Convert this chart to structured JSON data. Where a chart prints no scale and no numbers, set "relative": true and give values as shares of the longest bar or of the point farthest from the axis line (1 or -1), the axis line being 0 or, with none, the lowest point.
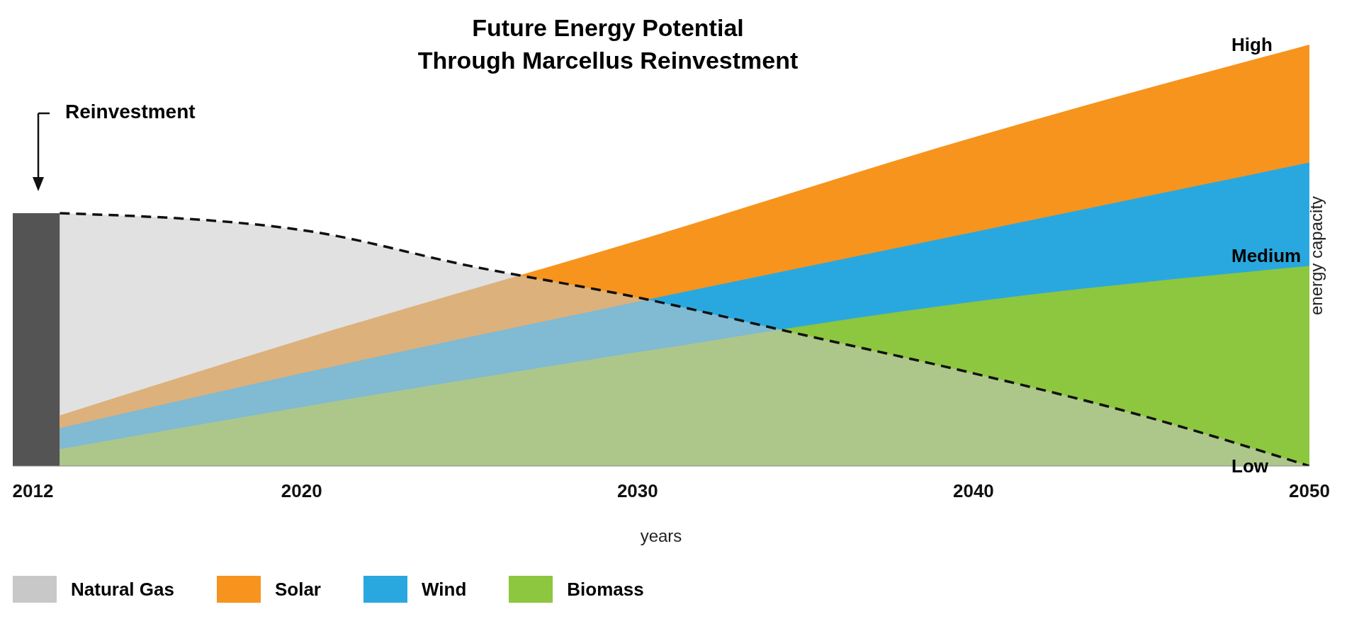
{
  "chart_data": {
    "type": "area",
    "title": "Future Energy Potential\nThrough Marcellus Reinvestment",
    "xlabel": "years",
    "ylabel": "energy capacity",
    "relative": true,
    "xlim": [
      2011.4,
      2050
    ],
    "xticks": [
      2012,
      2020,
      2030,
      2040,
      2050
    ],
    "annotations": [
      "Reinvestment",
      "High",
      "Medium",
      "Low"
    ],
    "legend": "bottom",
    "series": [
      {
        "type": "area",
        "color": "#545454",
        "x": [
          2011.4,
          2012.8
        ],
        "values": [
          0.6,
          0.6
        ]
      },
      {
        "name": "Solar",
        "color": "#f7941d",
        "x": [
          2012.8,
          2020,
          2030,
          2040,
          2050
        ],
        "values": [
          0.12,
          0.3,
          0.535,
          0.78,
          1
        ]
      },
      {
        "name": "Wind",
        "color": "#29a8e0",
        "x": [
          2012.8,
          2020,
          2030,
          2040,
          2050
        ],
        "values": [
          0.09,
          0.22,
          0.39,
          0.555,
          0.72
        ]
      },
      {
        "name": "Biomass",
        "color": "#8dc63f",
        "x": [
          2012.8,
          2020,
          2030,
          2040,
          2050
        ],
        "values": [
          0.04,
          0.14,
          0.27,
          0.39,
          0.475
        ]
      },
      {
        "name": "Natural Gas",
        "color": "#c8c8c8",
        "line_style": "dashed",
        "x": [
          2012.8,
          2020,
          2025,
          2030,
          2035,
          2040,
          2045,
          2050
        ],
        "values": [
          0.6,
          0.56,
          0.475,
          0.4,
          0.31,
          0.22,
          0.12,
          0
        ]
      }
    ]
  }
}
